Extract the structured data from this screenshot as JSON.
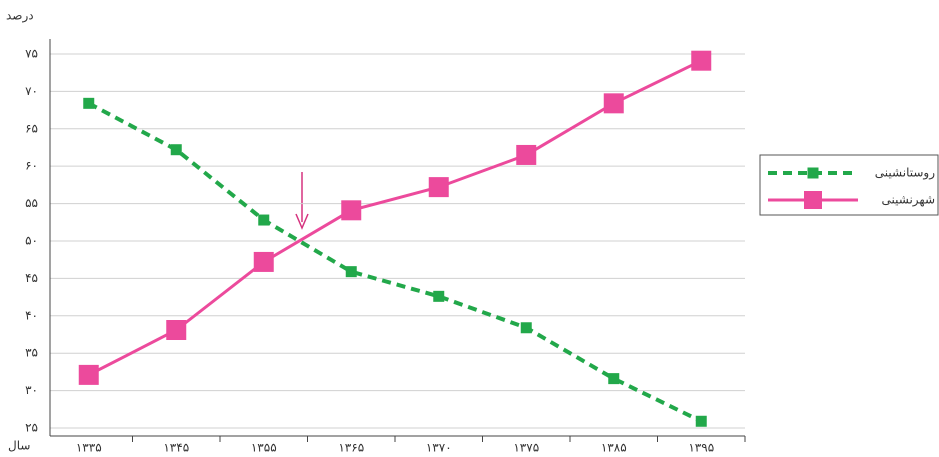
{
  "chart_data": {
    "type": "line",
    "y_label": "درصد",
    "x_label": "سال",
    "categories": [
      "۱۳۳۵",
      "۱۳۴۵",
      "۱۳۵۵",
      "۱۳۶۵",
      "۱۳۷۰",
      "۱۳۷۵",
      "۱۳۸۵",
      "۱۳۹۵"
    ],
    "series": [
      {
        "name": "روستانشینی",
        "color": "#22a84a",
        "values": [
          68.4,
          62.2,
          52.8,
          45.9,
          42.6,
          38.4,
          31.6,
          25.9
        ]
      },
      {
        "name": "شهرنشینی",
        "color": "#ec4a9c",
        "values": [
          32.1,
          38.1,
          47.2,
          54.1,
          57.2,
          61.5,
          68.4,
          74.1
        ]
      }
    ],
    "ylim": [
      25,
      77
    ],
    "yticks": [
      {
        "value": 25,
        "label": "۲۵"
      },
      {
        "value": 30,
        "label": "۳۰"
      },
      {
        "value": 35,
        "label": "۳۵"
      },
      {
        "value": 40,
        "label": "۴۰"
      },
      {
        "value": 45,
        "label": "۴۵"
      },
      {
        "value": 50,
        "label": "۵۰"
      },
      {
        "value": 55,
        "label": "۵۵"
      },
      {
        "value": 60,
        "label": "۶۰"
      },
      {
        "value": 65,
        "label": "۶۵"
      },
      {
        "value": 70,
        "label": "۷۰"
      },
      {
        "value": 75,
        "label": "۷۵"
      }
    ],
    "grid": true
  }
}
